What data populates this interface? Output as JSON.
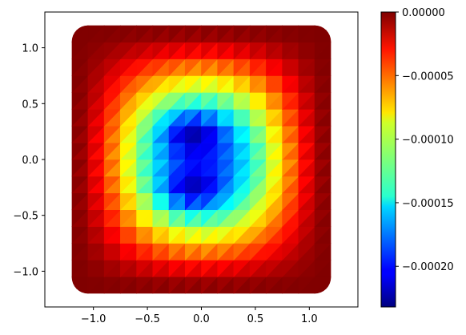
{
  "chart_data": {
    "type": "heatmap",
    "plot_kind": "triangulated contour (tripcolor-like), jet colormap",
    "xlim": [
      -1.45,
      1.45
    ],
    "ylim": [
      -1.32,
      1.32
    ],
    "x_ticks": [
      -1.0,
      -0.5,
      0.0,
      0.5,
      1.0
    ],
    "x_tick_labels": [
      "−1.0",
      "−0.5",
      "0.0",
      "0.5",
      "1.0"
    ],
    "y_ticks": [
      1.0,
      0.5,
      0.0,
      -0.5,
      -1.0
    ],
    "y_tick_labels": [
      "1.0",
      "0.5",
      "0.0",
      "−0.5",
      "−1.0"
    ],
    "domain": {
      "shape": "rounded square",
      "x": [
        -1.2,
        1.2
      ],
      "y": [
        -1.2,
        1.2
      ]
    },
    "grid": false,
    "colorbar": {
      "colormap": "jet",
      "vmin": -0.000232,
      "vmax": 0.0,
      "ticks": [
        0.0,
        -5e-05,
        -0.0001,
        -0.00015,
        -0.0002
      ],
      "tick_labels": [
        "0.00000",
        "−0.00005",
        "−0.00010",
        "−0.00015",
        "−0.00020"
      ]
    },
    "field": {
      "description": "values are 0 at the outer boundary and decrease toward a minimum of about -0.00023 near (-0.1, 0.2) and (-0.1, -0.3)",
      "min_value": -0.000232,
      "min_locations": [
        [
          -0.1,
          0.25
        ],
        [
          -0.1,
          -0.28
        ]
      ],
      "boundary_value": 0.0
    }
  }
}
